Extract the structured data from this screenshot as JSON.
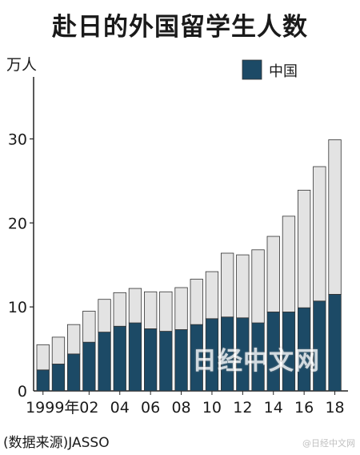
{
  "title": "赴日的外国留学生人数",
  "source": "(数据来源)JASSO",
  "watermark": "日经中文网",
  "weibo_mark": "@日经中文网",
  "colors": {
    "china": "#1c4a66",
    "total": "#e3e3e3",
    "stroke": "#333333"
  },
  "chart_data": {
    "type": "bar",
    "stacked": true,
    "title": "赴日的外国留学生人数",
    "ylabel": "万人",
    "xlabel": "",
    "ylim": [
      0,
      37
    ],
    "yticks": [
      0,
      10,
      20,
      30
    ],
    "categories": [
      "1999",
      "2000",
      "2001",
      "2002",
      "2003",
      "2004",
      "2005",
      "2006",
      "2007",
      "2008",
      "2009",
      "2010",
      "2011",
      "2012",
      "2013",
      "2014",
      "2015",
      "2016",
      "2017",
      "2018"
    ],
    "xtick_labels": [
      "1999年",
      "",
      "",
      "02",
      "",
      "04",
      "",
      "06",
      "",
      "08",
      "",
      "10",
      "",
      "12",
      "",
      "14",
      "",
      "16",
      "",
      "18"
    ],
    "series": [
      {
        "name": "中国",
        "values": [
          2.5,
          3.2,
          4.4,
          5.8,
          7.0,
          7.7,
          8.1,
          7.4,
          7.1,
          7.3,
          7.9,
          8.6,
          8.8,
          8.7,
          8.1,
          9.4,
          9.4,
          9.9,
          10.7,
          11.5
        ]
      },
      {
        "values": [
          3.0,
          3.2,
          3.5,
          3.7,
          3.9,
          4.0,
          4.1,
          4.4,
          4.7,
          5.0,
          5.4,
          5.6,
          7.6,
          7.5,
          8.7,
          9.0,
          11.4,
          14.0,
          16.0,
          18.4
        ]
      }
    ],
    "totals": [
      5.5,
      6.4,
      7.9,
      9.5,
      10.9,
      11.7,
      12.2,
      11.8,
      11.8,
      12.3,
      13.3,
      14.2,
      16.4,
      16.2,
      16.8,
      18.4,
      20.8,
      23.9,
      26.7,
      29.9
    ],
    "legend": [
      "中国"
    ],
    "legend_position": "top-right"
  }
}
